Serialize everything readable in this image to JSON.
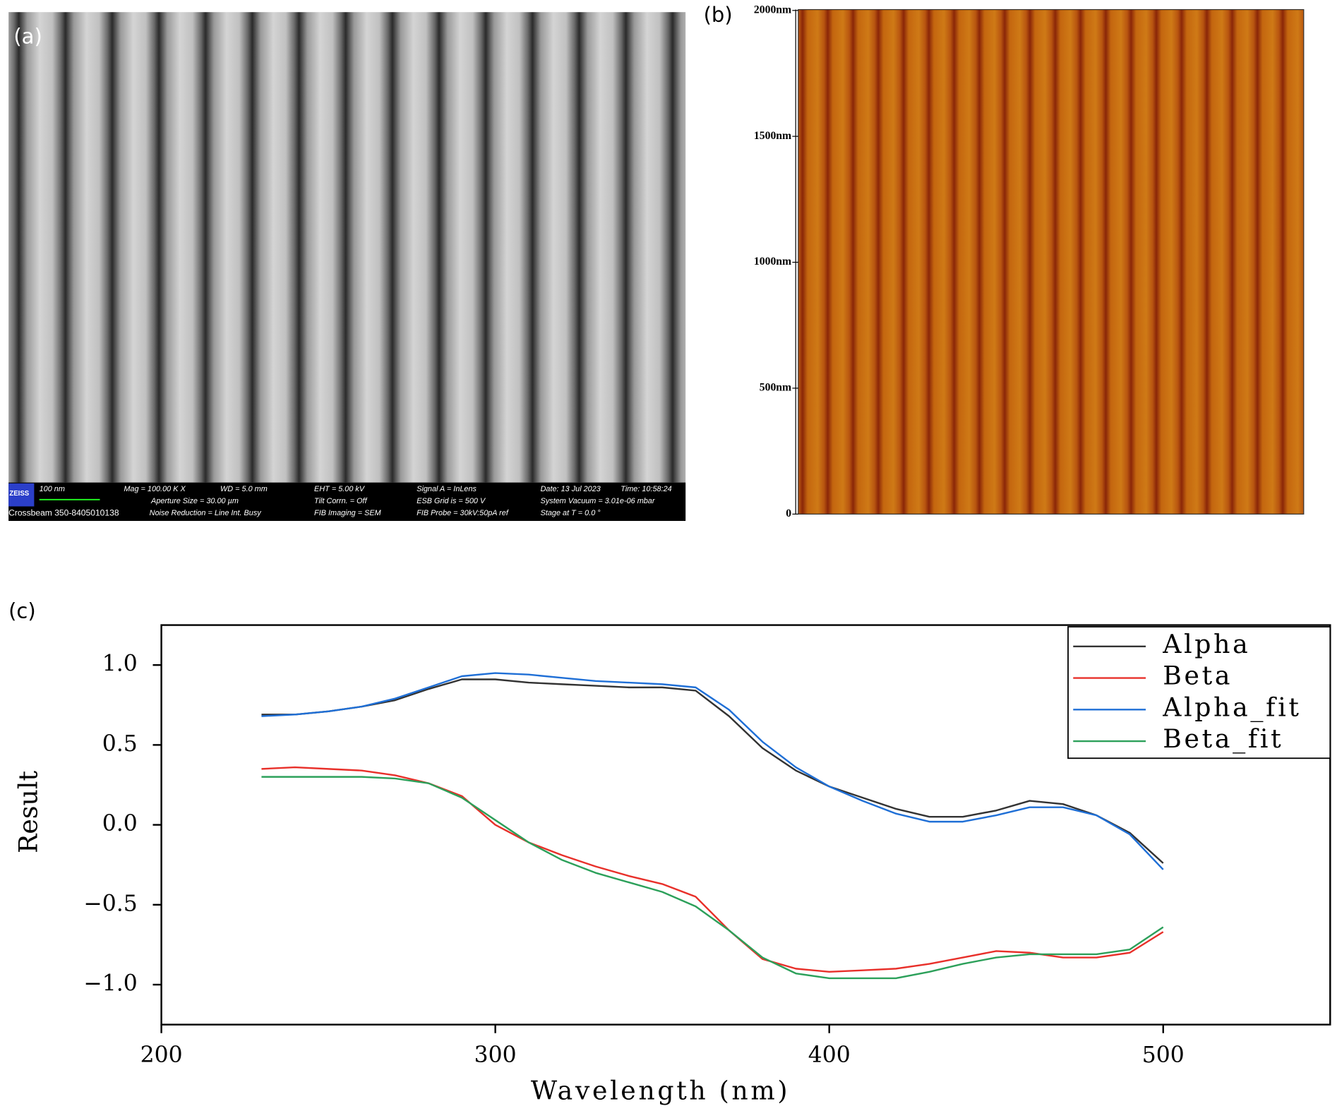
{
  "panels": {
    "a": {
      "label": "(a)",
      "info_bar": [
        "ZEISS",
        "100 nm",
        "Mag = 100.00 K X",
        "WD = 5.0 mm",
        "EHT = 5.00 kV",
        "Signal A = InLens",
        "Date: 13 Jul 2023",
        "Time: 10:58:24",
        "Aperture Size = 30.00 µm",
        "Tilt Corrn. = Off",
        "ESB Grid is = 500 V",
        "System Vacuum = 3.01e-06 mbar",
        "Crossbeam 350-8405010138",
        "Noise Reduction = Line Int. Busy",
        "FIB Imaging = SEM",
        "FIB Probe = 30kV:50pA ref",
        "Stage at T = 0.0 °"
      ]
    },
    "b": {
      "label": "(b)",
      "ylim": [
        0,
        2000
      ],
      "yticks": [
        {
          "value": 0,
          "label": "0"
        },
        {
          "value": 500,
          "label": "500nm"
        },
        {
          "value": 1000,
          "label": "1000nm"
        },
        {
          "value": 1500,
          "label": "1500nm"
        },
        {
          "value": 2000,
          "label": "2000nm"
        }
      ]
    },
    "c": {
      "label": "(c)"
    }
  },
  "chart_data": {
    "type": "line",
    "x_label": "Wavelength (nm)",
    "y_label": "Result",
    "x": [
      230,
      240,
      250,
      260,
      270,
      280,
      290,
      300,
      310,
      320,
      330,
      340,
      350,
      360,
      370,
      380,
      390,
      400,
      410,
      420,
      430,
      440,
      450,
      460,
      470,
      480,
      490,
      500
    ],
    "series": [
      {
        "name": "Alpha",
        "color": "#333333",
        "values": [
          0.69,
          0.69,
          0.71,
          0.74,
          0.78,
          0.85,
          0.91,
          0.91,
          0.89,
          0.88,
          0.87,
          0.86,
          0.86,
          0.84,
          0.68,
          0.48,
          0.34,
          0.24,
          0.17,
          0.1,
          0.05,
          0.05,
          0.09,
          0.15,
          0.13,
          0.06,
          -0.05,
          -0.24
        ]
      },
      {
        "name": "Beta",
        "color": "#e8302a",
        "values": [
          0.35,
          0.36,
          0.35,
          0.34,
          0.31,
          0.26,
          0.18,
          0.0,
          -0.11,
          -0.19,
          -0.26,
          -0.32,
          -0.37,
          -0.45,
          -0.66,
          -0.84,
          -0.9,
          -0.92,
          -0.91,
          -0.9,
          -0.87,
          -0.83,
          -0.79,
          -0.8,
          -0.83,
          -0.83,
          -0.8,
          -0.67
        ]
      },
      {
        "name": "Alpha_fit",
        "color": "#1f6fd6",
        "values": [
          0.68,
          0.69,
          0.71,
          0.74,
          0.79,
          0.86,
          0.93,
          0.95,
          0.94,
          0.92,
          0.9,
          0.89,
          0.88,
          0.86,
          0.72,
          0.52,
          0.36,
          0.24,
          0.15,
          0.07,
          0.02,
          0.02,
          0.06,
          0.11,
          0.11,
          0.06,
          -0.06,
          -0.28
        ]
      },
      {
        "name": "Beta_fit",
        "color": "#2ca05a",
        "values": [
          0.3,
          0.3,
          0.3,
          0.3,
          0.29,
          0.26,
          0.17,
          0.03,
          -0.11,
          -0.22,
          -0.3,
          -0.36,
          -0.42,
          -0.51,
          -0.66,
          -0.83,
          -0.93,
          -0.96,
          -0.96,
          -0.96,
          -0.92,
          -0.87,
          -0.83,
          -0.81,
          -0.81,
          -0.81,
          -0.78,
          -0.64
        ]
      }
    ],
    "xlim": [
      200,
      550
    ],
    "xticks": [
      200,
      300,
      400,
      500
    ],
    "ylim": [
      -1.25,
      1.25
    ],
    "yticks": [
      {
        "value": -1,
        "label": "−1.0"
      },
      {
        "value": -0.5,
        "label": "−0.5"
      },
      {
        "value": 0,
        "label": "0.0"
      },
      {
        "value": 0.5,
        "label": "0.5"
      },
      {
        "value": 1,
        "label": "1.0"
      }
    ],
    "legend": "upper right"
  }
}
